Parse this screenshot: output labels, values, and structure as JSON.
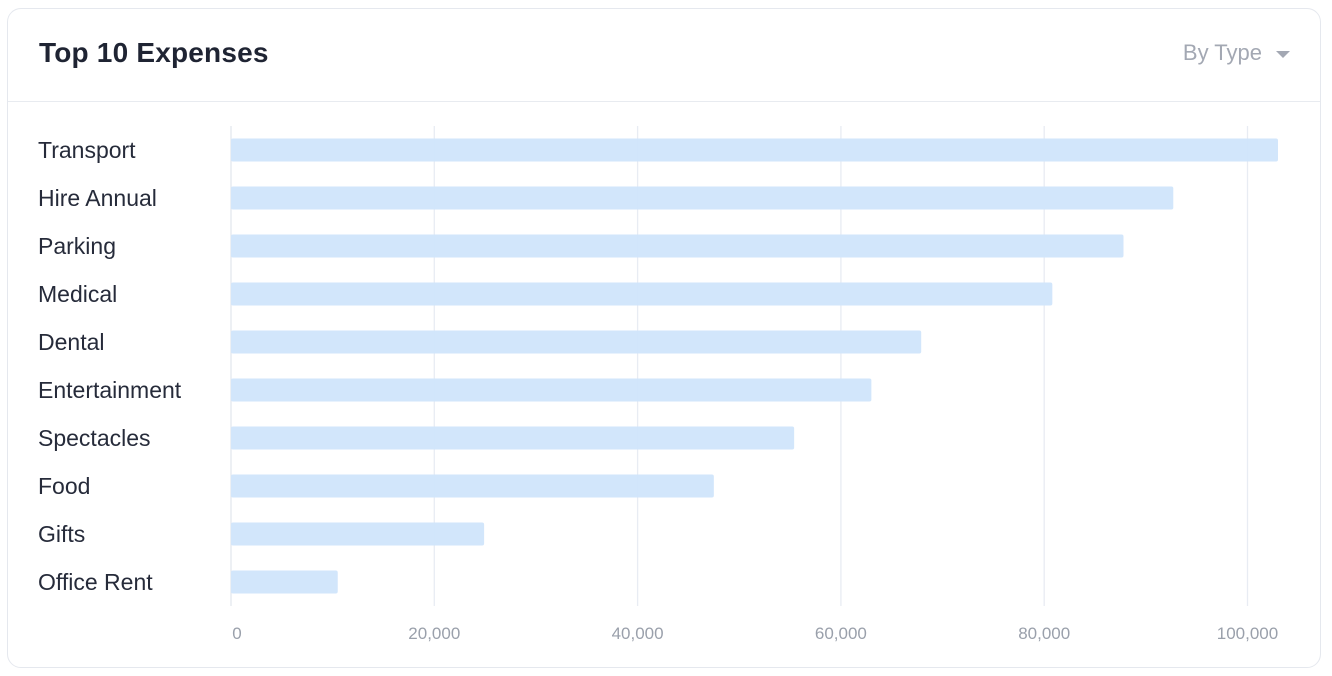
{
  "header": {
    "title": "Top 10 Expenses",
    "dropdown_label": "By Type"
  },
  "colors": {
    "bar": "#d0e5fb",
    "grid": "#e8ecf3",
    "axis": "#e3e7ef"
  },
  "chart_data": {
    "type": "bar",
    "orientation": "horizontal",
    "title": "Top 10 Expenses",
    "categories": [
      "Transport",
      "Hire Annual",
      "Parking",
      "Medical",
      "Dental",
      "Entertainment",
      "Spectacles",
      "Food",
      "Gifts",
      "Office Rent"
    ],
    "values": [
      103000,
      92700,
      87800,
      80800,
      67900,
      63000,
      55400,
      47500,
      24900,
      10500
    ],
    "xlim": [
      0,
      103000
    ],
    "xticks": [
      0,
      20000,
      40000,
      60000,
      80000,
      100000
    ],
    "xtick_labels": [
      "0",
      "20,000",
      "40,000",
      "60,000",
      "80,000",
      "100,000"
    ],
    "grid": true
  }
}
